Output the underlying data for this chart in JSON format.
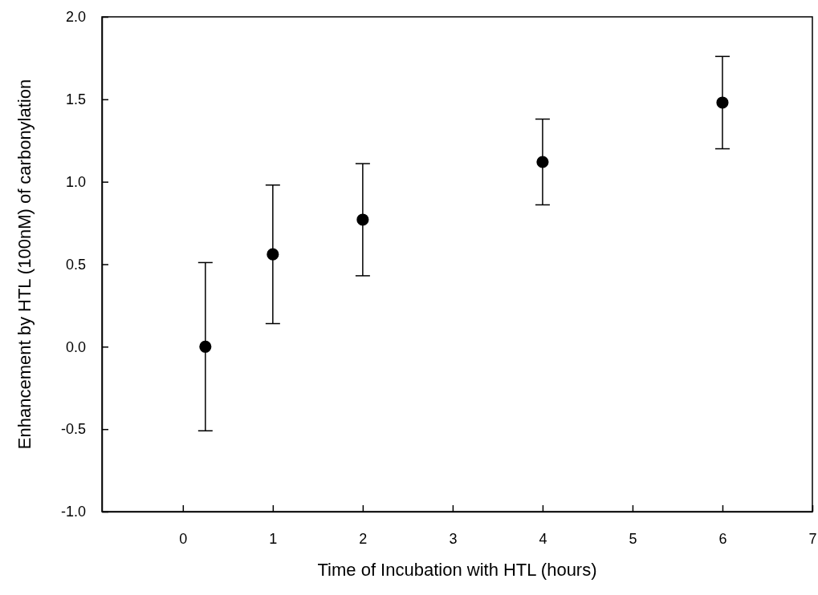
{
  "chart_data": {
    "type": "scatter",
    "xlabel": "Time of Incubation with HTL (hours)",
    "ylabel": "Enhancement by HTL (100nM) of carbonylation",
    "x": [
      0.25,
      1,
      2,
      4,
      6
    ],
    "values": [
      0.0,
      0.56,
      0.77,
      1.12,
      1.48
    ],
    "errors": [
      0.51,
      0.42,
      0.34,
      0.26,
      0.28
    ],
    "color": "#000000",
    "marker": "circle",
    "xlim": [
      -0.9,
      7
    ],
    "xticks": [
      0,
      1,
      2,
      3,
      4,
      5,
      6,
      7
    ],
    "ylim": [
      -1.0,
      2.0
    ],
    "yticks": [
      {
        "value": -1,
        "label": "-1.0"
      },
      {
        "value": -0.5,
        "label": "-0.5"
      },
      {
        "value": 0,
        "label": "0.0"
      },
      {
        "value": 0.5,
        "label": "0.5"
      },
      {
        "value": 1,
        "label": "1.0"
      },
      {
        "value": 1.5,
        "label": "1.5"
      },
      {
        "value": 2,
        "label": "2.0"
      }
    ],
    "grid": false
  }
}
